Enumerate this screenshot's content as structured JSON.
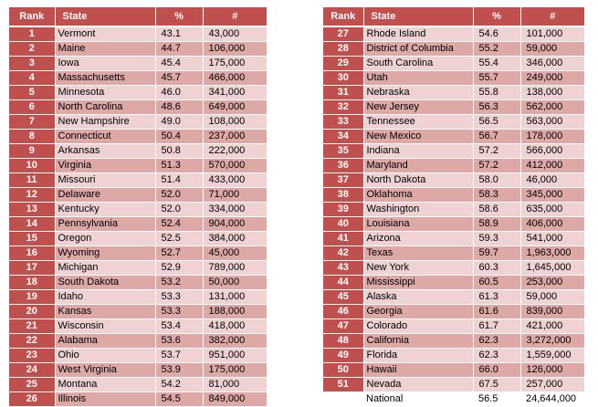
{
  "headers": {
    "rank": "Rank",
    "state": "State",
    "pct": "%",
    "num": "#"
  },
  "left_rows": [
    {
      "rank": "1",
      "state": "Vermont",
      "pct": "43.1",
      "num": "43,000"
    },
    {
      "rank": "2",
      "state": "Maine",
      "pct": "44.7",
      "num": "106,000"
    },
    {
      "rank": "3",
      "state": "Iowa",
      "pct": "45.4",
      "num": "175,000"
    },
    {
      "rank": "4",
      "state": "Massachusetts",
      "pct": "45.7",
      "num": "466,000"
    },
    {
      "rank": "5",
      "state": "Minnesota",
      "pct": "46.0",
      "num": "341,000"
    },
    {
      "rank": "6",
      "state": "North Carolina",
      "pct": "48.6",
      "num": "649,000"
    },
    {
      "rank": "7",
      "state": "New Hampshire",
      "pct": "49.0",
      "num": "108,000"
    },
    {
      "rank": "8",
      "state": "Connecticut",
      "pct": "50.4",
      "num": "237,000"
    },
    {
      "rank": "9",
      "state": "Arkansas",
      "pct": "50.8",
      "num": "222,000"
    },
    {
      "rank": "10",
      "state": "Virginia",
      "pct": "51.3",
      "num": "570,000"
    },
    {
      "rank": "11",
      "state": "Missouri",
      "pct": "51.4",
      "num": "433,000"
    },
    {
      "rank": "12",
      "state": "Delaware",
      "pct": "52.0",
      "num": "71,000"
    },
    {
      "rank": "13",
      "state": "Kentucky",
      "pct": "52.0",
      "num": "334,000"
    },
    {
      "rank": "14",
      "state": "Pennsylvania",
      "pct": "52.4",
      "num": "904,000"
    },
    {
      "rank": "15",
      "state": "Oregon",
      "pct": "52.5",
      "num": "384,000"
    },
    {
      "rank": "16",
      "state": "Wyoming",
      "pct": "52.7",
      "num": "45,000"
    },
    {
      "rank": "17",
      "state": "Michigan",
      "pct": "52.9",
      "num": "789,000"
    },
    {
      "rank": "18",
      "state": "South Dakota",
      "pct": "53.2",
      "num": "50,000"
    },
    {
      "rank": "19",
      "state": "Idaho",
      "pct": "53.3",
      "num": "131,000"
    },
    {
      "rank": "20",
      "state": "Kansas",
      "pct": "53.3",
      "num": "188,000"
    },
    {
      "rank": "21",
      "state": "Wisconsin",
      "pct": "53.4",
      "num": "418,000"
    },
    {
      "rank": "22",
      "state": "Alabama",
      "pct": "53.6",
      "num": "382,000"
    },
    {
      "rank": "23",
      "state": "Ohio",
      "pct": "53.7",
      "num": "951,000"
    },
    {
      "rank": "24",
      "state": "West Virginia",
      "pct": "53.9",
      "num": "175,000"
    },
    {
      "rank": "25",
      "state": "Montana",
      "pct": "54.2",
      "num": "81,000"
    },
    {
      "rank": "26",
      "state": "Illinois",
      "pct": "54.5",
      "num": "849,000"
    }
  ],
  "right_rows": [
    {
      "rank": "27",
      "state": "Rhode Island",
      "pct": "54.6",
      "num": "101,000"
    },
    {
      "rank": "28",
      "state": "District of Columbia",
      "pct": "55.2",
      "num": "59,000"
    },
    {
      "rank": "29",
      "state": "South Carolina",
      "pct": "55.4",
      "num": "346,000"
    },
    {
      "rank": "30",
      "state": "Utah",
      "pct": "55.7",
      "num": "249,000"
    },
    {
      "rank": "31",
      "state": "Nebraska",
      "pct": "55.8",
      "num": "138,000"
    },
    {
      "rank": "32",
      "state": "New Jersey",
      "pct": "56.3",
      "num": "562,000"
    },
    {
      "rank": "33",
      "state": "Tennessee",
      "pct": "56.5",
      "num": "563,000"
    },
    {
      "rank": "34",
      "state": "New Mexico",
      "pct": "56.7",
      "num": "178,000"
    },
    {
      "rank": "35",
      "state": "Indiana",
      "pct": "57.2",
      "num": "566,000"
    },
    {
      "rank": "36",
      "state": "Maryland",
      "pct": "57.2",
      "num": "412,000"
    },
    {
      "rank": "37",
      "state": "North Dakota",
      "pct": "58.0",
      "num": "46,000"
    },
    {
      "rank": "38",
      "state": "Oklahoma",
      "pct": "58.3",
      "num": "345,000"
    },
    {
      "rank": "39",
      "state": "Washington",
      "pct": "58.6",
      "num": "635,000"
    },
    {
      "rank": "40",
      "state": "Louisiana",
      "pct": "58.9",
      "num": "406,000"
    },
    {
      "rank": "41",
      "state": "Arizona",
      "pct": "59.3",
      "num": "541,000"
    },
    {
      "rank": "42",
      "state": "Texas",
      "pct": "59.7",
      "num": "1,963,000"
    },
    {
      "rank": "43",
      "state": "New York",
      "pct": "60.3",
      "num": "1,645,000"
    },
    {
      "rank": "44",
      "state": "Mississippi",
      "pct": "60.5",
      "num": "253,000"
    },
    {
      "rank": "45",
      "state": "Alaska",
      "pct": "61.3",
      "num": "59,000"
    },
    {
      "rank": "46",
      "state": "Georgia",
      "pct": "61.6",
      "num": "839,000"
    },
    {
      "rank": "47",
      "state": "Colorado",
      "pct": "61.7",
      "num": "421,000"
    },
    {
      "rank": "48",
      "state": "California",
      "pct": "62.3",
      "num": "3,272,000"
    },
    {
      "rank": "49",
      "state": "Florida",
      "pct": "62.3",
      "num": "1,559,000"
    },
    {
      "rank": "50",
      "state": "Hawaii",
      "pct": "66.0",
      "num": "126,000"
    },
    {
      "rank": "51",
      "state": "Nevada",
      "pct": "67.5",
      "num": "257,000"
    },
    {
      "rank": "",
      "state": "National",
      "pct": "56.5",
      "num": "24,644,000"
    }
  ]
}
